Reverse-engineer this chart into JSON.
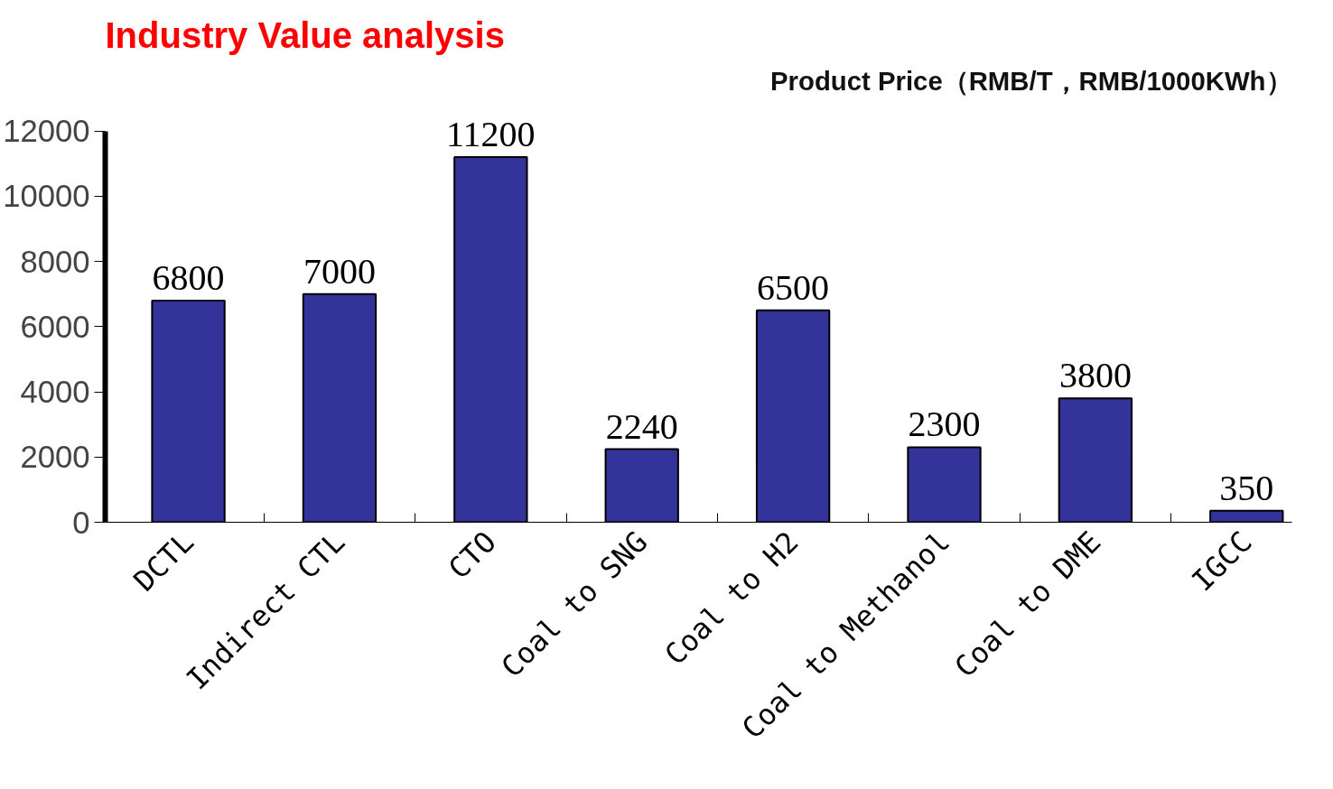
{
  "chart_data": {
    "type": "bar",
    "title": "Industry Value analysis",
    "subtitle": "Product Price（RMB/T，RMB/1000KWh）",
    "categories": [
      "DCTL",
      "Indirect CTL",
      "CTO",
      "Coal to SNG",
      "Coal to H2",
      "Coal to Methanol",
      "Coal to DME",
      "IGCC"
    ],
    "values": [
      6800,
      7000,
      11200,
      2240,
      6500,
      2300,
      3800,
      350
    ],
    "color": "#333399",
    "ylim": [
      0,
      12000
    ],
    "yticks": [
      0,
      2000,
      4000,
      6000,
      8000,
      10000,
      12000
    ],
    "grid": false,
    "data_labels": true
  }
}
